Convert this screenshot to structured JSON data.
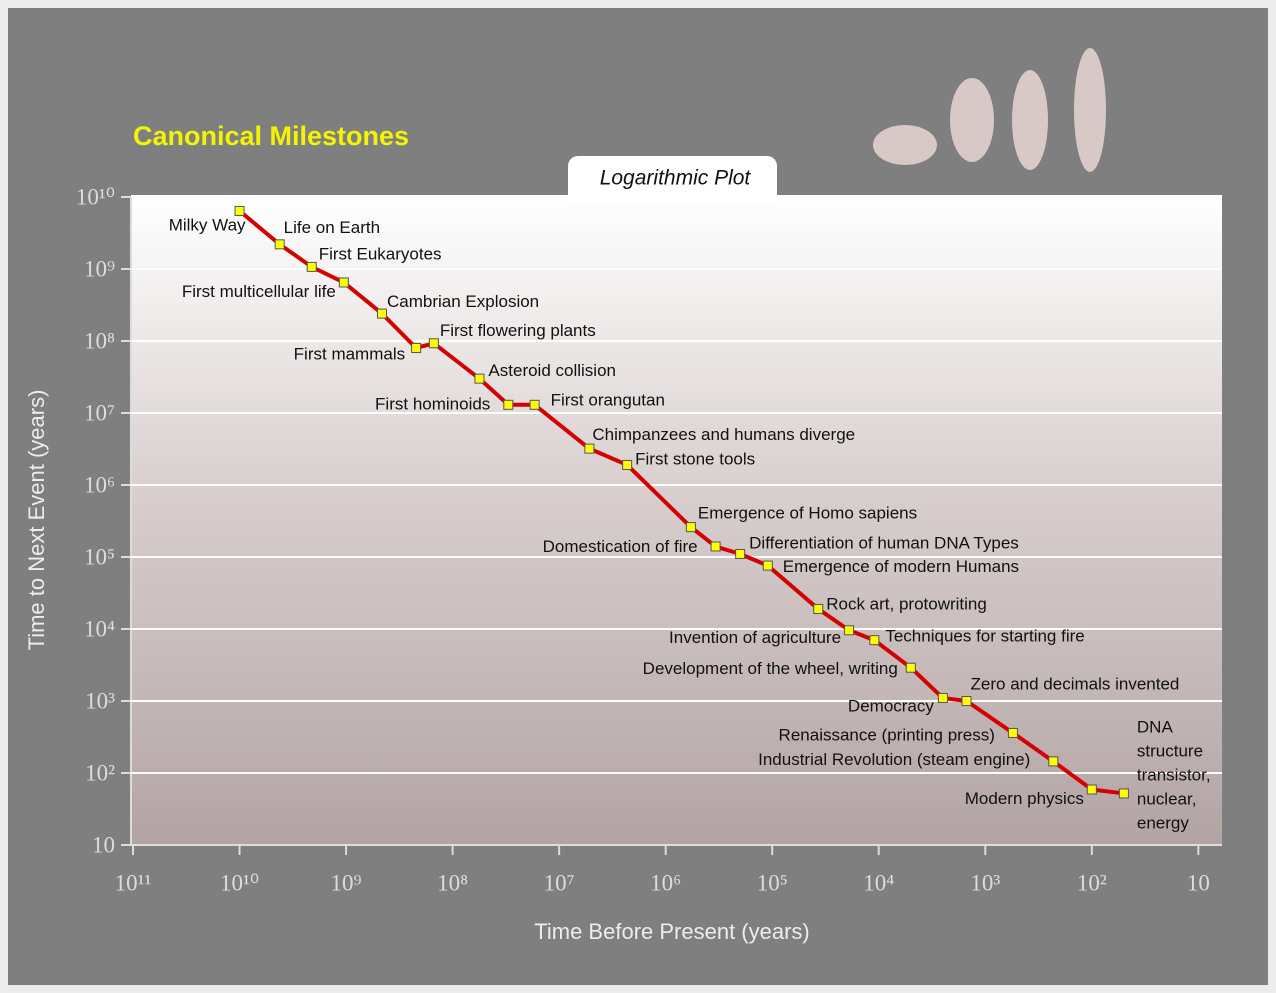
{
  "chart_data": {
    "type": "line",
    "title": "Canonical Milestones",
    "subtitle": "Logarithmic Plot",
    "x_label": "Time Before Present (years)",
    "y_label": "Time to Next Event (years)",
    "xscale": "log",
    "yscale": "log",
    "grid": true,
    "color": "#d40000",
    "marker_color": "#ffff00",
    "xlim": [
      100000000000,
      6
    ],
    "ylim": [
      10,
      10000000000
    ],
    "xticks": [
      {
        "value": 100000000000,
        "label": "10¹¹"
      },
      {
        "value": 10000000000,
        "label": "10¹⁰"
      },
      {
        "value": 1000000000,
        "label": "10⁹"
      },
      {
        "value": 100000000,
        "label": "10⁸"
      },
      {
        "value": 10000000,
        "label": "10⁷"
      },
      {
        "value": 1000000,
        "label": "10⁶"
      },
      {
        "value": 100000,
        "label": "10⁵"
      },
      {
        "value": 10000,
        "label": "10⁴"
      },
      {
        "value": 1000,
        "label": "10³"
      },
      {
        "value": 100,
        "label": "10²"
      },
      10
    ],
    "yticks": [
      10,
      {
        "value": 100,
        "label": "10²"
      },
      {
        "value": 1000,
        "label": "10³"
      },
      {
        "value": 10000,
        "label": "10⁴"
      },
      {
        "value": 100000,
        "label": "10⁵"
      },
      {
        "value": 1000000,
        "label": "10⁶"
      },
      {
        "value": 10000000,
        "label": "10⁷"
      },
      {
        "value": 100000000,
        "label": "10⁸"
      },
      {
        "value": 1000000000,
        "label": "10⁹"
      },
      {
        "value": 10000000000,
        "label": "10¹⁰"
      }
    ],
    "labels": [
      "Milky Way",
      "Life on Earth",
      "First Eukaryotes",
      "First multicellular life",
      "Cambrian Explosion",
      "First mammals",
      "First flowering plants",
      "Asteroid collision",
      "First hominoids",
      "First orangutan",
      "Chimpanzees and humans diverge",
      "First stone tools",
      "Emergence of Homo sapiens",
      "Domestication of fire",
      "Differentiation of human DNA Types",
      "Emergence of modern Humans",
      "Rock art, protowriting",
      "Invention of agriculture",
      "Techniques for starting fire",
      "Development of the wheel, writing",
      "Democracy",
      "Zero and decimals invented",
      "Renaissance (printing press)",
      "Industrial Revolution (steam engine)",
      "Modern physics",
      [
        "DNA",
        "structure",
        "transistor,",
        "nuclear,",
        "energy"
      ]
    ],
    "x": [
      10000000000,
      4200000000,
      2100000000,
      1050000000,
      460000000,
      220000000,
      150000000,
      56000000,
      30000000,
      17000000,
      5200000,
      2300000,
      580000,
      340000,
      200000,
      110000,
      37000,
      19000,
      11000,
      5000,
      2500,
      1500,
      550,
      230,
      100,
      50
    ],
    "values": [
      6400000000,
      2200000000,
      1070000000,
      650000000,
      240000000,
      80000000,
      93000000,
      30000000,
      13000000,
      13000000,
      3200000,
      1900000,
      260000,
      140000,
      110000,
      76000,
      19000,
      9600,
      7000,
      2900,
      1100,
      1000,
      360,
      145,
      59,
      52
    ]
  }
}
